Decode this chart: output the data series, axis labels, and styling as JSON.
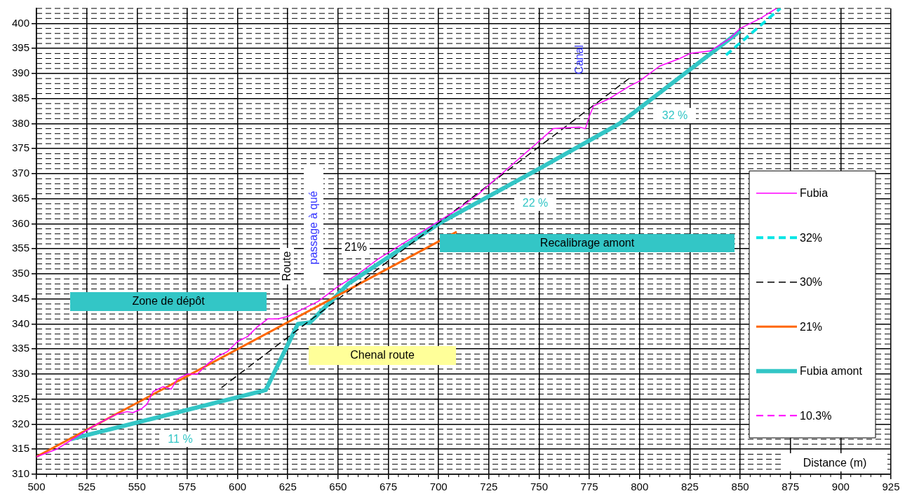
{
  "chart_data": {
    "type": "line",
    "xlabel": "Distance (m)",
    "xlim": [
      500,
      925
    ],
    "xticks": [
      500,
      525,
      550,
      575,
      600,
      625,
      650,
      675,
      700,
      725,
      750,
      775,
      800,
      825,
      850,
      875,
      900,
      925
    ],
    "ylim": [
      310,
      403
    ],
    "yticks": [
      310,
      315,
      320,
      325,
      330,
      335,
      340,
      345,
      350,
      355,
      360,
      365,
      370,
      375,
      380,
      385,
      390,
      395,
      400
    ],
    "grid": true,
    "legend": "right",
    "marker": "none",
    "series": [
      {
        "name": "Fubia",
        "color": "#ff00ff",
        "line_style": "solid",
        "x": [
          500,
          510,
          520,
          530,
          540,
          545,
          548,
          552,
          555,
          558,
          563,
          567,
          570,
          575,
          580,
          585,
          590,
          595,
          600,
          605,
          610,
          615,
          620,
          625,
          630,
          640,
          650,
          660,
          670,
          680,
          690,
          700,
          710,
          720,
          730,
          740,
          750,
          757,
          765,
          770,
          773,
          775,
          777,
          785,
          795,
          800,
          810,
          820,
          825,
          835,
          845,
          850,
          860,
          868
        ],
        "values": [
          313.5,
          315,
          317.5,
          320,
          322,
          322.5,
          322.3,
          323,
          324,
          326.5,
          327.5,
          327,
          329,
          330,
          330,
          332,
          333.5,
          334.5,
          336.5,
          337.5,
          339.5,
          341,
          341,
          341.5,
          342.5,
          344.5,
          347.5,
          350,
          353,
          355.5,
          358,
          360.5,
          363,
          366,
          369.5,
          373,
          376.5,
          379,
          379.2,
          379.3,
          379,
          381.5,
          383.5,
          385,
          387.5,
          388.5,
          391.5,
          393,
          394,
          394.5,
          397,
          399,
          401,
          403
        ]
      },
      {
        "name": "32%",
        "color": "#00e5e5",
        "line_style": "dashed",
        "x": [
          843,
          870
        ],
        "values": [
          393.7,
          403
        ]
      },
      {
        "name": "30%",
        "color": "#000000",
        "line_style": "dashed",
        "x": [
          592,
          796
        ],
        "values": [
          327.3,
          389.4
        ]
      },
      {
        "name": "21%",
        "color": "#ff6600",
        "line_style": "solid",
        "x": [
          500,
          709
        ],
        "values": [
          313.5,
          358.4
        ]
      },
      {
        "name": "Fubia amont",
        "color": "#33c6c6",
        "line_style": "solid",
        "x": [
          517,
          614,
          630,
          636,
          655,
          700,
          750,
          790,
          850
        ],
        "values": [
          317,
          326.8,
          340,
          340.3,
          348,
          360,
          371,
          380,
          398.5
        ]
      },
      {
        "name": "10.3%",
        "color": "#ff00ff",
        "line_style": "dashed"
      }
    ],
    "annotations": [
      "Zone de dépôt",
      "Chenal route",
      "Recalibrage amont",
      "11 %",
      "22 %",
      "32 %",
      "21%",
      "Route",
      "passage à qué",
      "Canal"
    ]
  }
}
